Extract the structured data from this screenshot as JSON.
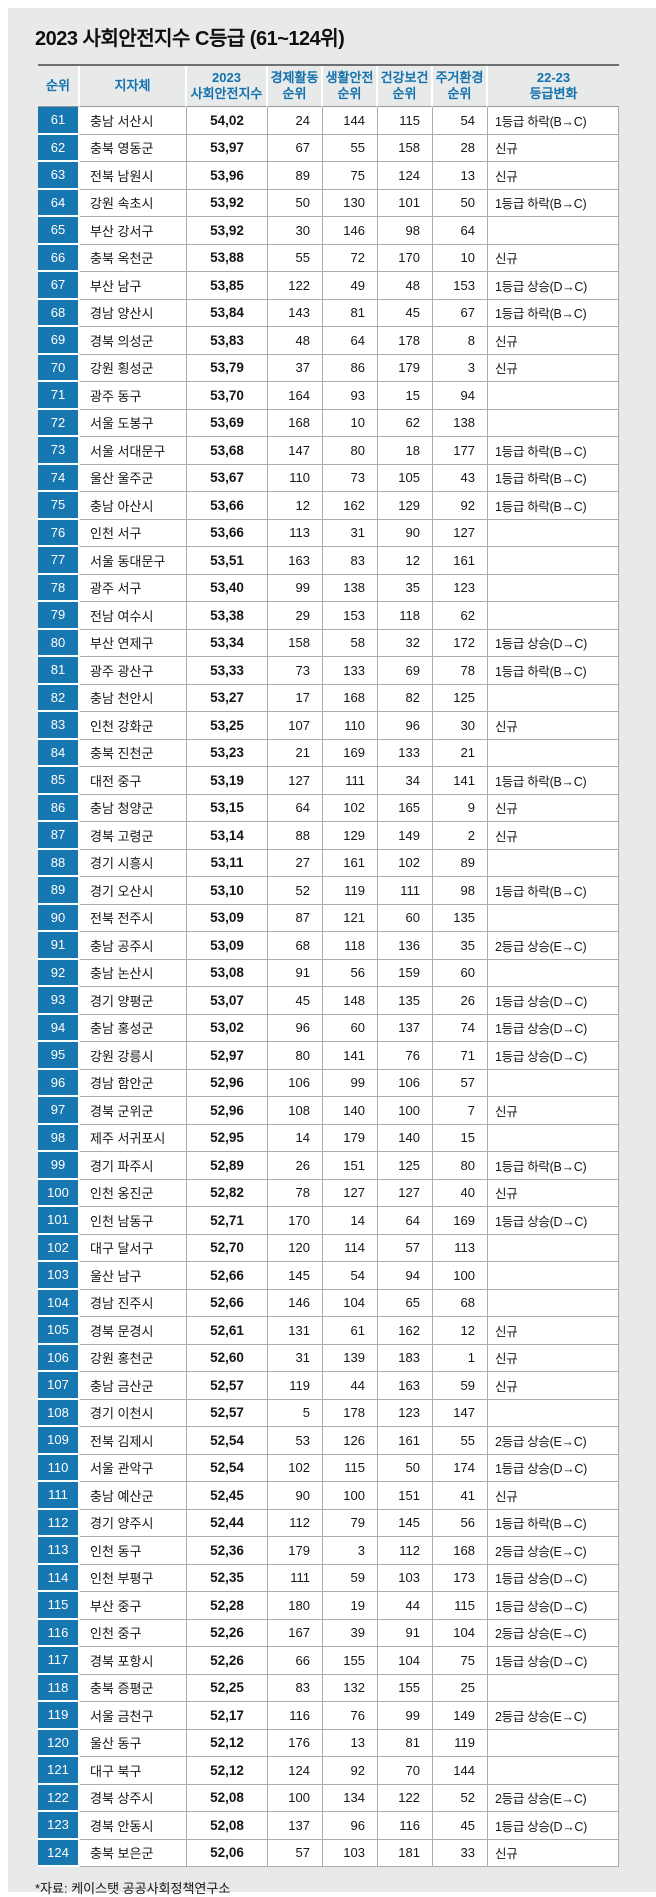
{
  "colors": {
    "panel_bg": "#e8e9e9",
    "rank_cell_bg": "#1677b1",
    "rank_cell_text": "#ffffff",
    "header_text": "#1272ad",
    "grid_line": "#aaacae",
    "body_text": "#161616"
  },
  "chart_data": {
    "type": "table",
    "title": "2023 사회안전지수 C등급 (61~124위)",
    "footnote": "*자료: 케이스탯 공공사회정책연구소",
    "columns": [
      {
        "id": "rank",
        "label": "순위"
      },
      {
        "id": "municipality",
        "label": "지자체"
      },
      {
        "id": "index",
        "label": "2023\n사회안전지수"
      },
      {
        "id": "economic",
        "label": "경제활동\n순위"
      },
      {
        "id": "life",
        "label": "생활안전\n순위"
      },
      {
        "id": "health",
        "label": "건강보건\n순위"
      },
      {
        "id": "housing",
        "label": "주거환경\n순위"
      },
      {
        "id": "change",
        "label": "22-23\n등급변화"
      }
    ],
    "rows": [
      {
        "rank": 61,
        "municipality": "충남 서산시",
        "index": "54,02",
        "economic": 24,
        "life": 144,
        "health": 115,
        "housing": 54,
        "change": "1등급 하락(B→C)"
      },
      {
        "rank": 62,
        "municipality": "충북 영동군",
        "index": "53,97",
        "economic": 67,
        "life": 55,
        "health": 158,
        "housing": 28,
        "change": "신규"
      },
      {
        "rank": 63,
        "municipality": "전북 남원시",
        "index": "53,96",
        "economic": 89,
        "life": 75,
        "health": 124,
        "housing": 13,
        "change": "신규"
      },
      {
        "rank": 64,
        "municipality": "강원 속초시",
        "index": "53,92",
        "economic": 50,
        "life": 130,
        "health": 101,
        "housing": 50,
        "change": "1등급 하락(B→C)"
      },
      {
        "rank": 65,
        "municipality": "부산 강서구",
        "index": "53,92",
        "economic": 30,
        "life": 146,
        "health": 98,
        "housing": 64,
        "change": ""
      },
      {
        "rank": 66,
        "municipality": "충북 옥천군",
        "index": "53,88",
        "economic": 55,
        "life": 72,
        "health": 170,
        "housing": 10,
        "change": "신규"
      },
      {
        "rank": 67,
        "municipality": "부산 남구",
        "index": "53,85",
        "economic": 122,
        "life": 49,
        "health": 48,
        "housing": 153,
        "change": "1등급 상승(D→C)"
      },
      {
        "rank": 68,
        "municipality": "경남 양산시",
        "index": "53,84",
        "economic": 143,
        "life": 81,
        "health": 45,
        "housing": 67,
        "change": "1등급 하락(B→C)"
      },
      {
        "rank": 69,
        "municipality": "경북 의성군",
        "index": "53,83",
        "economic": 48,
        "life": 64,
        "health": 178,
        "housing": 8,
        "change": "신규"
      },
      {
        "rank": 70,
        "municipality": "강원 횡성군",
        "index": "53,79",
        "economic": 37,
        "life": 86,
        "health": 179,
        "housing": 3,
        "change": "신규"
      },
      {
        "rank": 71,
        "municipality": "광주 동구",
        "index": "53,70",
        "economic": 164,
        "life": 93,
        "health": 15,
        "housing": 94,
        "change": ""
      },
      {
        "rank": 72,
        "municipality": "서울 도봉구",
        "index": "53,69",
        "economic": 168,
        "life": 10,
        "health": 62,
        "housing": 138,
        "change": ""
      },
      {
        "rank": 73,
        "municipality": "서울 서대문구",
        "index": "53,68",
        "economic": 147,
        "life": 80,
        "health": 18,
        "housing": 177,
        "change": "1등급 하락(B→C)"
      },
      {
        "rank": 74,
        "municipality": "울산 울주군",
        "index": "53,67",
        "economic": 110,
        "life": 73,
        "health": 105,
        "housing": 43,
        "change": "1등급 하락(B→C)"
      },
      {
        "rank": 75,
        "municipality": "충남 아산시",
        "index": "53,66",
        "economic": 12,
        "life": 162,
        "health": 129,
        "housing": 92,
        "change": "1등급 하락(B→C)"
      },
      {
        "rank": 76,
        "municipality": "인천 서구",
        "index": "53,66",
        "economic": 113,
        "life": 31,
        "health": 90,
        "housing": 127,
        "change": ""
      },
      {
        "rank": 77,
        "municipality": "서울 동대문구",
        "index": "53,51",
        "economic": 163,
        "life": 83,
        "health": 12,
        "housing": 161,
        "change": ""
      },
      {
        "rank": 78,
        "municipality": "광주 서구",
        "index": "53,40",
        "economic": 99,
        "life": 138,
        "health": 35,
        "housing": 123,
        "change": ""
      },
      {
        "rank": 79,
        "municipality": "전남 여수시",
        "index": "53,38",
        "economic": 29,
        "life": 153,
        "health": 118,
        "housing": 62,
        "change": ""
      },
      {
        "rank": 80,
        "municipality": "부산 연제구",
        "index": "53,34",
        "economic": 158,
        "life": 58,
        "health": 32,
        "housing": 172,
        "change": "1등급 상승(D→C)"
      },
      {
        "rank": 81,
        "municipality": "광주 광산구",
        "index": "53,33",
        "economic": 73,
        "life": 133,
        "health": 69,
        "housing": 78,
        "change": "1등급 하락(B→C)"
      },
      {
        "rank": 82,
        "municipality": "충남 천안시",
        "index": "53,27",
        "economic": 17,
        "life": 168,
        "health": 82,
        "housing": 125,
        "change": ""
      },
      {
        "rank": 83,
        "municipality": "인천 강화군",
        "index": "53,25",
        "economic": 107,
        "life": 110,
        "health": 96,
        "housing": 30,
        "change": "신규"
      },
      {
        "rank": 84,
        "municipality": "충북 진천군",
        "index": "53,23",
        "economic": 21,
        "life": 169,
        "health": 133,
        "housing": 21,
        "change": ""
      },
      {
        "rank": 85,
        "municipality": "대전 중구",
        "index": "53,19",
        "economic": 127,
        "life": 111,
        "health": 34,
        "housing": 141,
        "change": "1등급 하락(B→C)"
      },
      {
        "rank": 86,
        "municipality": "충남 청양군",
        "index": "53,15",
        "economic": 64,
        "life": 102,
        "health": 165,
        "housing": 9,
        "change": "신규"
      },
      {
        "rank": 87,
        "municipality": "경북 고령군",
        "index": "53,14",
        "economic": 88,
        "life": 129,
        "health": 149,
        "housing": 2,
        "change": "신규"
      },
      {
        "rank": 88,
        "municipality": "경기 시흥시",
        "index": "53,11",
        "economic": 27,
        "life": 161,
        "health": 102,
        "housing": 89,
        "change": ""
      },
      {
        "rank": 89,
        "municipality": "경기 오산시",
        "index": "53,10",
        "economic": 52,
        "life": 119,
        "health": 111,
        "housing": 98,
        "change": "1등급 하락(B→C)"
      },
      {
        "rank": 90,
        "municipality": "전북 전주시",
        "index": "53,09",
        "economic": 87,
        "life": 121,
        "health": 60,
        "housing": 135,
        "change": ""
      },
      {
        "rank": 91,
        "municipality": "충남 공주시",
        "index": "53,09",
        "economic": 68,
        "life": 118,
        "health": 136,
        "housing": 35,
        "change": "2등급 상승(E→C)"
      },
      {
        "rank": 92,
        "municipality": "충남 논산시",
        "index": "53,08",
        "economic": 91,
        "life": 56,
        "health": 159,
        "housing": 60,
        "change": ""
      },
      {
        "rank": 93,
        "municipality": "경기 양평군",
        "index": "53,07",
        "economic": 45,
        "life": 148,
        "health": 135,
        "housing": 26,
        "change": "1등급 상승(D→C)"
      },
      {
        "rank": 94,
        "municipality": "충남 홍성군",
        "index": "53,02",
        "economic": 96,
        "life": 60,
        "health": 137,
        "housing": 74,
        "change": "1등급 상승(D→C)"
      },
      {
        "rank": 95,
        "municipality": "강원 강릉시",
        "index": "52,97",
        "economic": 80,
        "life": 141,
        "health": 76,
        "housing": 71,
        "change": "1등급 상승(D→C)"
      },
      {
        "rank": 96,
        "municipality": "경남 함안군",
        "index": "52,96",
        "economic": 106,
        "life": 99,
        "health": 106,
        "housing": 57,
        "change": ""
      },
      {
        "rank": 97,
        "municipality": "경북 군위군",
        "index": "52,96",
        "economic": 108,
        "life": 140,
        "health": 100,
        "housing": 7,
        "change": "신규"
      },
      {
        "rank": 98,
        "municipality": "제주 서귀포시",
        "index": "52,95",
        "economic": 14,
        "life": 179,
        "health": 140,
        "housing": 15,
        "change": ""
      },
      {
        "rank": 99,
        "municipality": "경기 파주시",
        "index": "52,89",
        "economic": 26,
        "life": 151,
        "health": 125,
        "housing": 80,
        "change": "1등급 하락(B→C)"
      },
      {
        "rank": 100,
        "municipality": "인천 옹진군",
        "index": "52,82",
        "economic": 78,
        "life": 127,
        "health": 127,
        "housing": 40,
        "change": "신규"
      },
      {
        "rank": 101,
        "municipality": "인천 남동구",
        "index": "52,71",
        "economic": 170,
        "life": 14,
        "health": 64,
        "housing": 169,
        "change": "1등급 상승(D→C)"
      },
      {
        "rank": 102,
        "municipality": "대구 달서구",
        "index": "52,70",
        "economic": 120,
        "life": 114,
        "health": 57,
        "housing": 113,
        "change": ""
      },
      {
        "rank": 103,
        "municipality": "울산 남구",
        "index": "52,66",
        "economic": 145,
        "life": 54,
        "health": 94,
        "housing": 100,
        "change": ""
      },
      {
        "rank": 104,
        "municipality": "경남 진주시",
        "index": "52,66",
        "economic": 146,
        "life": 104,
        "health": 65,
        "housing": 68,
        "change": ""
      },
      {
        "rank": 105,
        "municipality": "경북 문경시",
        "index": "52,61",
        "economic": 131,
        "life": 61,
        "health": 162,
        "housing": 12,
        "change": "신규"
      },
      {
        "rank": 106,
        "municipality": "강원 홍천군",
        "index": "52,60",
        "economic": 31,
        "life": 139,
        "health": 183,
        "housing": 1,
        "change": "신규"
      },
      {
        "rank": 107,
        "municipality": "충남 금산군",
        "index": "52,57",
        "economic": 119,
        "life": 44,
        "health": 163,
        "housing": 59,
        "change": "신규"
      },
      {
        "rank": 108,
        "municipality": "경기 이천시",
        "index": "52,57",
        "economic": 5,
        "life": 178,
        "health": 123,
        "housing": 147,
        "change": ""
      },
      {
        "rank": 109,
        "municipality": "전북 김제시",
        "index": "52,54",
        "economic": 53,
        "life": 126,
        "health": 161,
        "housing": 55,
        "change": "2등급 상승(E→C)"
      },
      {
        "rank": 110,
        "municipality": "서울 관악구",
        "index": "52,54",
        "economic": 102,
        "life": 115,
        "health": 50,
        "housing": 174,
        "change": "1등급 상승(D→C)"
      },
      {
        "rank": 111,
        "municipality": "충남 예산군",
        "index": "52,45",
        "economic": 90,
        "life": 100,
        "health": 151,
        "housing": 41,
        "change": "신규"
      },
      {
        "rank": 112,
        "municipality": "경기 양주시",
        "index": "52,44",
        "economic": 112,
        "life": 79,
        "health": 145,
        "housing": 56,
        "change": "1등급 하락(B→C)"
      },
      {
        "rank": 113,
        "municipality": "인천 동구",
        "index": "52,36",
        "economic": 179,
        "life": 3,
        "health": 112,
        "housing": 168,
        "change": "2등급 상승(E→C)"
      },
      {
        "rank": 114,
        "municipality": "인천 부평구",
        "index": "52,35",
        "economic": 111,
        "life": 59,
        "health": 103,
        "housing": 173,
        "change": "1등급 상승(D→C)"
      },
      {
        "rank": 115,
        "municipality": "부산 중구",
        "index": "52,28",
        "economic": 180,
        "life": 19,
        "health": 44,
        "housing": 115,
        "change": "1등급 상승(D→C)"
      },
      {
        "rank": 116,
        "municipality": "인천 중구",
        "index": "52,26",
        "economic": 167,
        "life": 39,
        "health": 91,
        "housing": 104,
        "change": "2등급 상승(E→C)"
      },
      {
        "rank": 117,
        "municipality": "경북 포항시",
        "index": "52,26",
        "economic": 66,
        "life": 155,
        "health": 104,
        "housing": 75,
        "change": "1등급 상승(D→C)"
      },
      {
        "rank": 118,
        "municipality": "충북 증평군",
        "index": "52,25",
        "economic": 83,
        "life": 132,
        "health": 155,
        "housing": 25,
        "change": ""
      },
      {
        "rank": 119,
        "municipality": "서울 금천구",
        "index": "52,17",
        "economic": 116,
        "life": 76,
        "health": 99,
        "housing": 149,
        "change": "2등급 상승(E→C)"
      },
      {
        "rank": 120,
        "municipality": "울산 동구",
        "index": "52,12",
        "economic": 176,
        "life": 13,
        "health": 81,
        "housing": 119,
        "change": ""
      },
      {
        "rank": 121,
        "municipality": "대구 북구",
        "index": "52,12",
        "economic": 124,
        "life": 92,
        "health": 70,
        "housing": 144,
        "change": ""
      },
      {
        "rank": 122,
        "municipality": "경북 상주시",
        "index": "52,08",
        "economic": 100,
        "life": 134,
        "health": 122,
        "housing": 52,
        "change": "2등급 상승(E→C)"
      },
      {
        "rank": 123,
        "municipality": "경북 안동시",
        "index": "52,08",
        "economic": 137,
        "life": 96,
        "health": 116,
        "housing": 45,
        "change": "1등급 상승(D→C)"
      },
      {
        "rank": 124,
        "municipality": "충북 보은군",
        "index": "52,06",
        "economic": 57,
        "life": 103,
        "health": 181,
        "housing": 33,
        "change": "신규"
      }
    ]
  }
}
